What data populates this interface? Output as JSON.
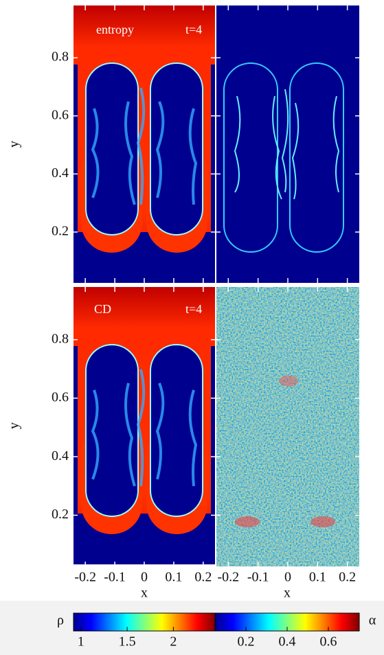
{
  "panels": [
    {
      "label": "entropy",
      "time": "t=4"
    },
    {
      "label": "CD",
      "time": "t=4"
    }
  ],
  "axes": {
    "y_label": "y",
    "x_label": "x",
    "xlim": [
      -0.24,
      0.24
    ],
    "xticks": [
      -0.2,
      -0.1,
      0,
      0.1,
      0.2
    ],
    "ylim": [
      0.025,
      0.98
    ],
    "yticks": [
      0.2,
      0.4,
      0.6,
      0.8
    ]
  },
  "colorbars": [
    {
      "label": "ρ",
      "lim": [
        0.92,
        2.45
      ],
      "ticks": [
        1,
        1.5,
        2
      ]
    },
    {
      "label": "α",
      "lim": [
        0.05,
        0.75
      ],
      "ticks": [
        0.2,
        0.4,
        0.6
      ]
    }
  ]
}
